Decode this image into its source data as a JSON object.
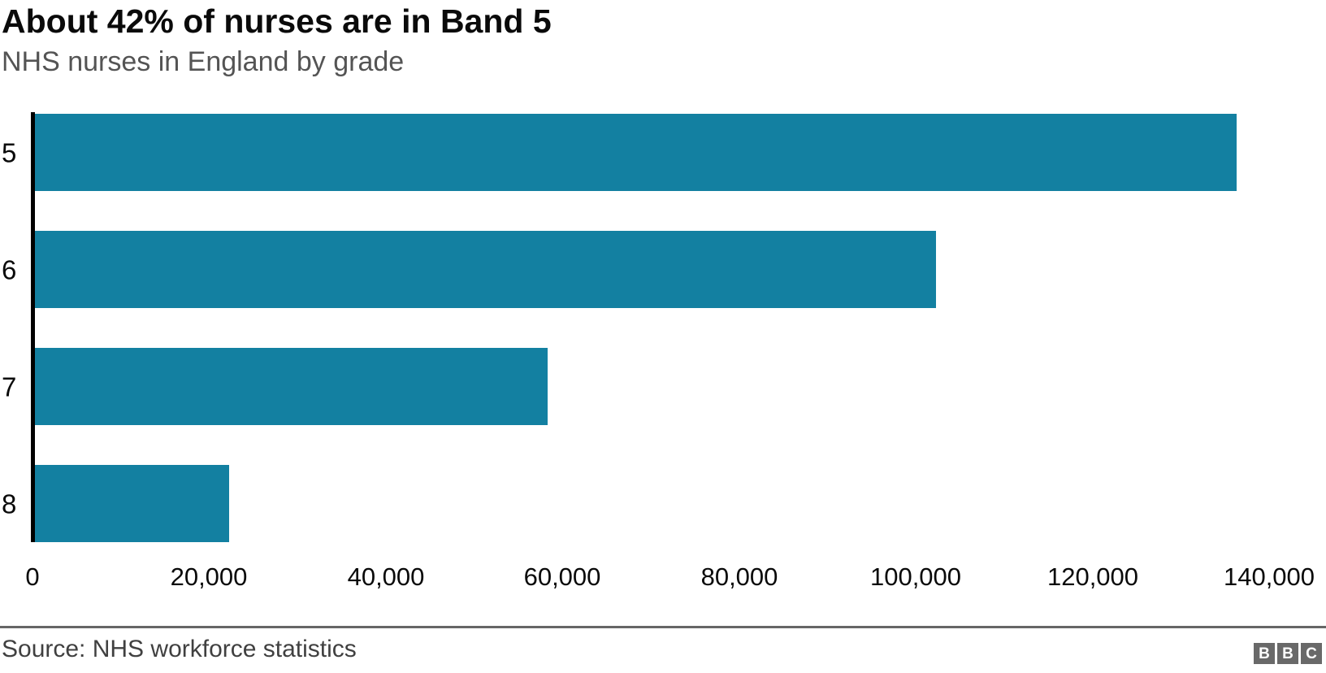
{
  "header": {
    "title": "About 42% of nurses are in Band 5",
    "subtitle": "NHS nurses in England by grade"
  },
  "chart_data": {
    "type": "bar",
    "orientation": "horizontal",
    "title": "About 42% of nurses are in Band 5",
    "subtitle": "NHS nurses in England by grade",
    "categories": [
      "5",
      "6",
      "7",
      "8"
    ],
    "values": [
      136000,
      102000,
      58000,
      22000
    ],
    "xlabel": "",
    "ylabel": "",
    "xlim": [
      0,
      140000
    ],
    "x_ticks": [
      0,
      20000,
      40000,
      60000,
      80000,
      100000,
      120000,
      140000
    ],
    "x_tick_labels": [
      "0",
      "20,000",
      "40,000",
      "60,000",
      "80,000",
      "100,000",
      "120,000",
      "140,000"
    ],
    "grid": false,
    "legend": false,
    "bar_color": "#1380A1",
    "axis_line_color": "#000000"
  },
  "footer": {
    "source": "Source: NHS workforce statistics",
    "logo_letters": [
      "B",
      "B",
      "C"
    ]
  },
  "colors": {
    "bar": "#1380A1",
    "title_text": "#0a0a0a",
    "subtitle_text": "#545454",
    "source_text": "#404040",
    "divider": "#666666",
    "logo_block": "#696969"
  }
}
